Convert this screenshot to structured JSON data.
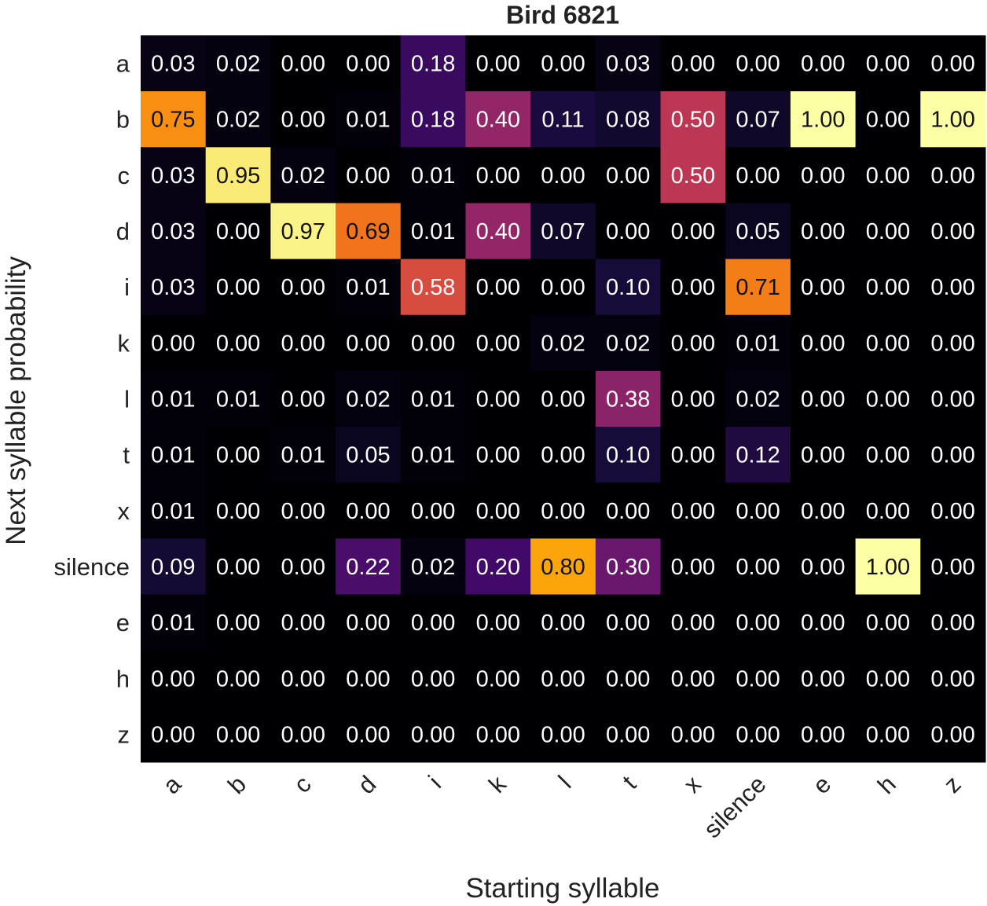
{
  "chart_data": {
    "type": "heatmap",
    "title": "Bird 6821",
    "xlabel": "Starting syllable",
    "ylabel": "Next syllable probability",
    "x_categories": [
      "a",
      "b",
      "c",
      "d",
      "i",
      "k",
      "l",
      "t",
      "x",
      "silence",
      "e",
      "h",
      "z"
    ],
    "y_categories": [
      "a",
      "b",
      "c",
      "d",
      "i",
      "k",
      "l",
      "t",
      "x",
      "silence",
      "e",
      "h",
      "z"
    ],
    "value_range": [
      0,
      1
    ],
    "colormap": "inferno",
    "values": [
      [
        0.03,
        0.02,
        0.0,
        0.0,
        0.18,
        0.0,
        0.0,
        0.03,
        0.0,
        0.0,
        0.0,
        0.0,
        0.0
      ],
      [
        0.75,
        0.02,
        0.0,
        0.01,
        0.18,
        0.4,
        0.11,
        0.08,
        0.5,
        0.07,
        1.0,
        0.0,
        1.0
      ],
      [
        0.03,
        0.95,
        0.02,
        0.0,
        0.01,
        0.0,
        0.0,
        0.0,
        0.5,
        0.0,
        0.0,
        0.0,
        0.0
      ],
      [
        0.03,
        0.0,
        0.97,
        0.69,
        0.01,
        0.4,
        0.07,
        0.0,
        0.0,
        0.05,
        0.0,
        0.0,
        0.0
      ],
      [
        0.03,
        0.0,
        0.0,
        0.01,
        0.58,
        0.0,
        0.0,
        0.1,
        0.0,
        0.71,
        0.0,
        0.0,
        0.0
      ],
      [
        0.0,
        0.0,
        0.0,
        0.0,
        0.0,
        0.0,
        0.02,
        0.02,
        0.0,
        0.01,
        0.0,
        0.0,
        0.0
      ],
      [
        0.01,
        0.01,
        0.0,
        0.02,
        0.01,
        0.0,
        0.0,
        0.38,
        0.0,
        0.02,
        0.0,
        0.0,
        0.0
      ],
      [
        0.01,
        0.0,
        0.01,
        0.05,
        0.01,
        0.0,
        0.0,
        0.1,
        0.0,
        0.12,
        0.0,
        0.0,
        0.0
      ],
      [
        0.01,
        0.0,
        0.0,
        0.0,
        0.0,
        0.0,
        0.0,
        0.0,
        0.0,
        0.0,
        0.0,
        0.0,
        0.0
      ],
      [
        0.09,
        0.0,
        0.0,
        0.22,
        0.02,
        0.2,
        0.8,
        0.3,
        0.0,
        0.0,
        0.0,
        1.0,
        0.0
      ],
      [
        0.01,
        0.0,
        0.0,
        0.0,
        0.0,
        0.0,
        0.0,
        0.0,
        0.0,
        0.0,
        0.0,
        0.0,
        0.0
      ],
      [
        0.0,
        0.0,
        0.0,
        0.0,
        0.0,
        0.0,
        0.0,
        0.0,
        0.0,
        0.0,
        0.0,
        0.0,
        0.0
      ],
      [
        0.0,
        0.0,
        0.0,
        0.0,
        0.0,
        0.0,
        0.0,
        0.0,
        0.0,
        0.0,
        0.0,
        0.0,
        0.0
      ]
    ]
  }
}
